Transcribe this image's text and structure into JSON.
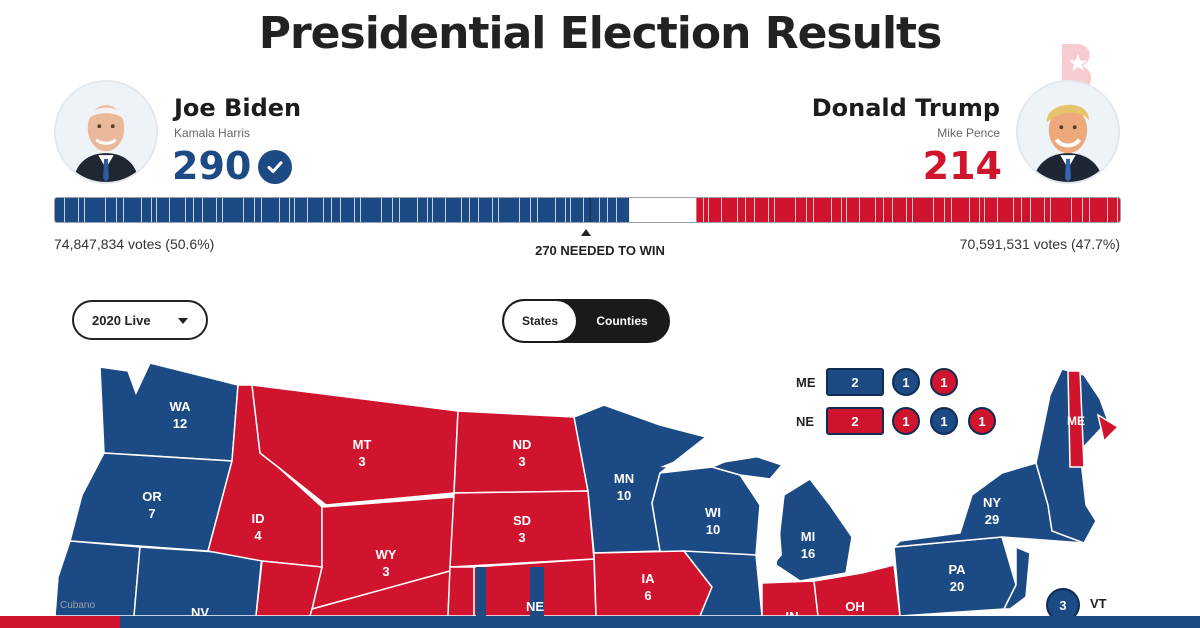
{
  "page_title": "Presidential Election Results",
  "biden": {
    "name": "Joe Biden",
    "running_mate": "Kamala Harris",
    "electoral_votes": "290",
    "popular_votes": "74,847,834 votes (50.6%)",
    "winner": true,
    "color": "#1b4a84"
  },
  "trump": {
    "name": "Donald Trump",
    "running_mate": "Mike Pence",
    "electoral_votes": "214",
    "popular_votes": "70,591,531 votes (47.7%)",
    "color": "#d0142d"
  },
  "needed_to_win": "270 NEEDED TO WIN",
  "year_select": {
    "value": "2020 Live"
  },
  "view_toggle": {
    "states": "States",
    "counties": "Counties",
    "active": "states"
  },
  "split_states": {
    "me": {
      "label": "ME",
      "statewide": "2",
      "districts": [
        "1",
        "1"
      ]
    },
    "ne": {
      "label": "NE",
      "statewide": "2",
      "districts": [
        "1",
        "1",
        "1"
      ]
    }
  },
  "map_states": [
    {
      "abbr": "WA",
      "ev": "12",
      "winner": "dem"
    },
    {
      "abbr": "OR",
      "ev": "7",
      "winner": "dem"
    },
    {
      "abbr": "ID",
      "ev": "4",
      "winner": "rep"
    },
    {
      "abbr": "MT",
      "ev": "3",
      "winner": "rep"
    },
    {
      "abbr": "WY",
      "ev": "3",
      "winner": "rep"
    },
    {
      "abbr": "ND",
      "ev": "3",
      "winner": "rep"
    },
    {
      "abbr": "SD",
      "ev": "3",
      "winner": "rep"
    },
    {
      "abbr": "NE",
      "ev": "",
      "winner": "rep"
    },
    {
      "abbr": "MN",
      "ev": "10",
      "winner": "dem"
    },
    {
      "abbr": "WI",
      "ev": "10",
      "winner": "dem"
    },
    {
      "abbr": "IA",
      "ev": "6",
      "winner": "rep"
    },
    {
      "abbr": "MI",
      "ev": "16",
      "winner": "dem"
    },
    {
      "abbr": "OH",
      "ev": "",
      "winner": "rep"
    },
    {
      "abbr": "IN",
      "ev": "",
      "winner": "rep"
    },
    {
      "abbr": "NY",
      "ev": "29",
      "winner": "dem"
    },
    {
      "abbr": "PA",
      "ev": "20",
      "winner": "dem"
    },
    {
      "abbr": "ME",
      "ev": "",
      "winner": "split"
    },
    {
      "abbr": "NV",
      "ev": "",
      "winner": "dem"
    }
  ],
  "vt": {
    "label": "VT",
    "ev": "3"
  },
  "watermark": "Cubano"
}
